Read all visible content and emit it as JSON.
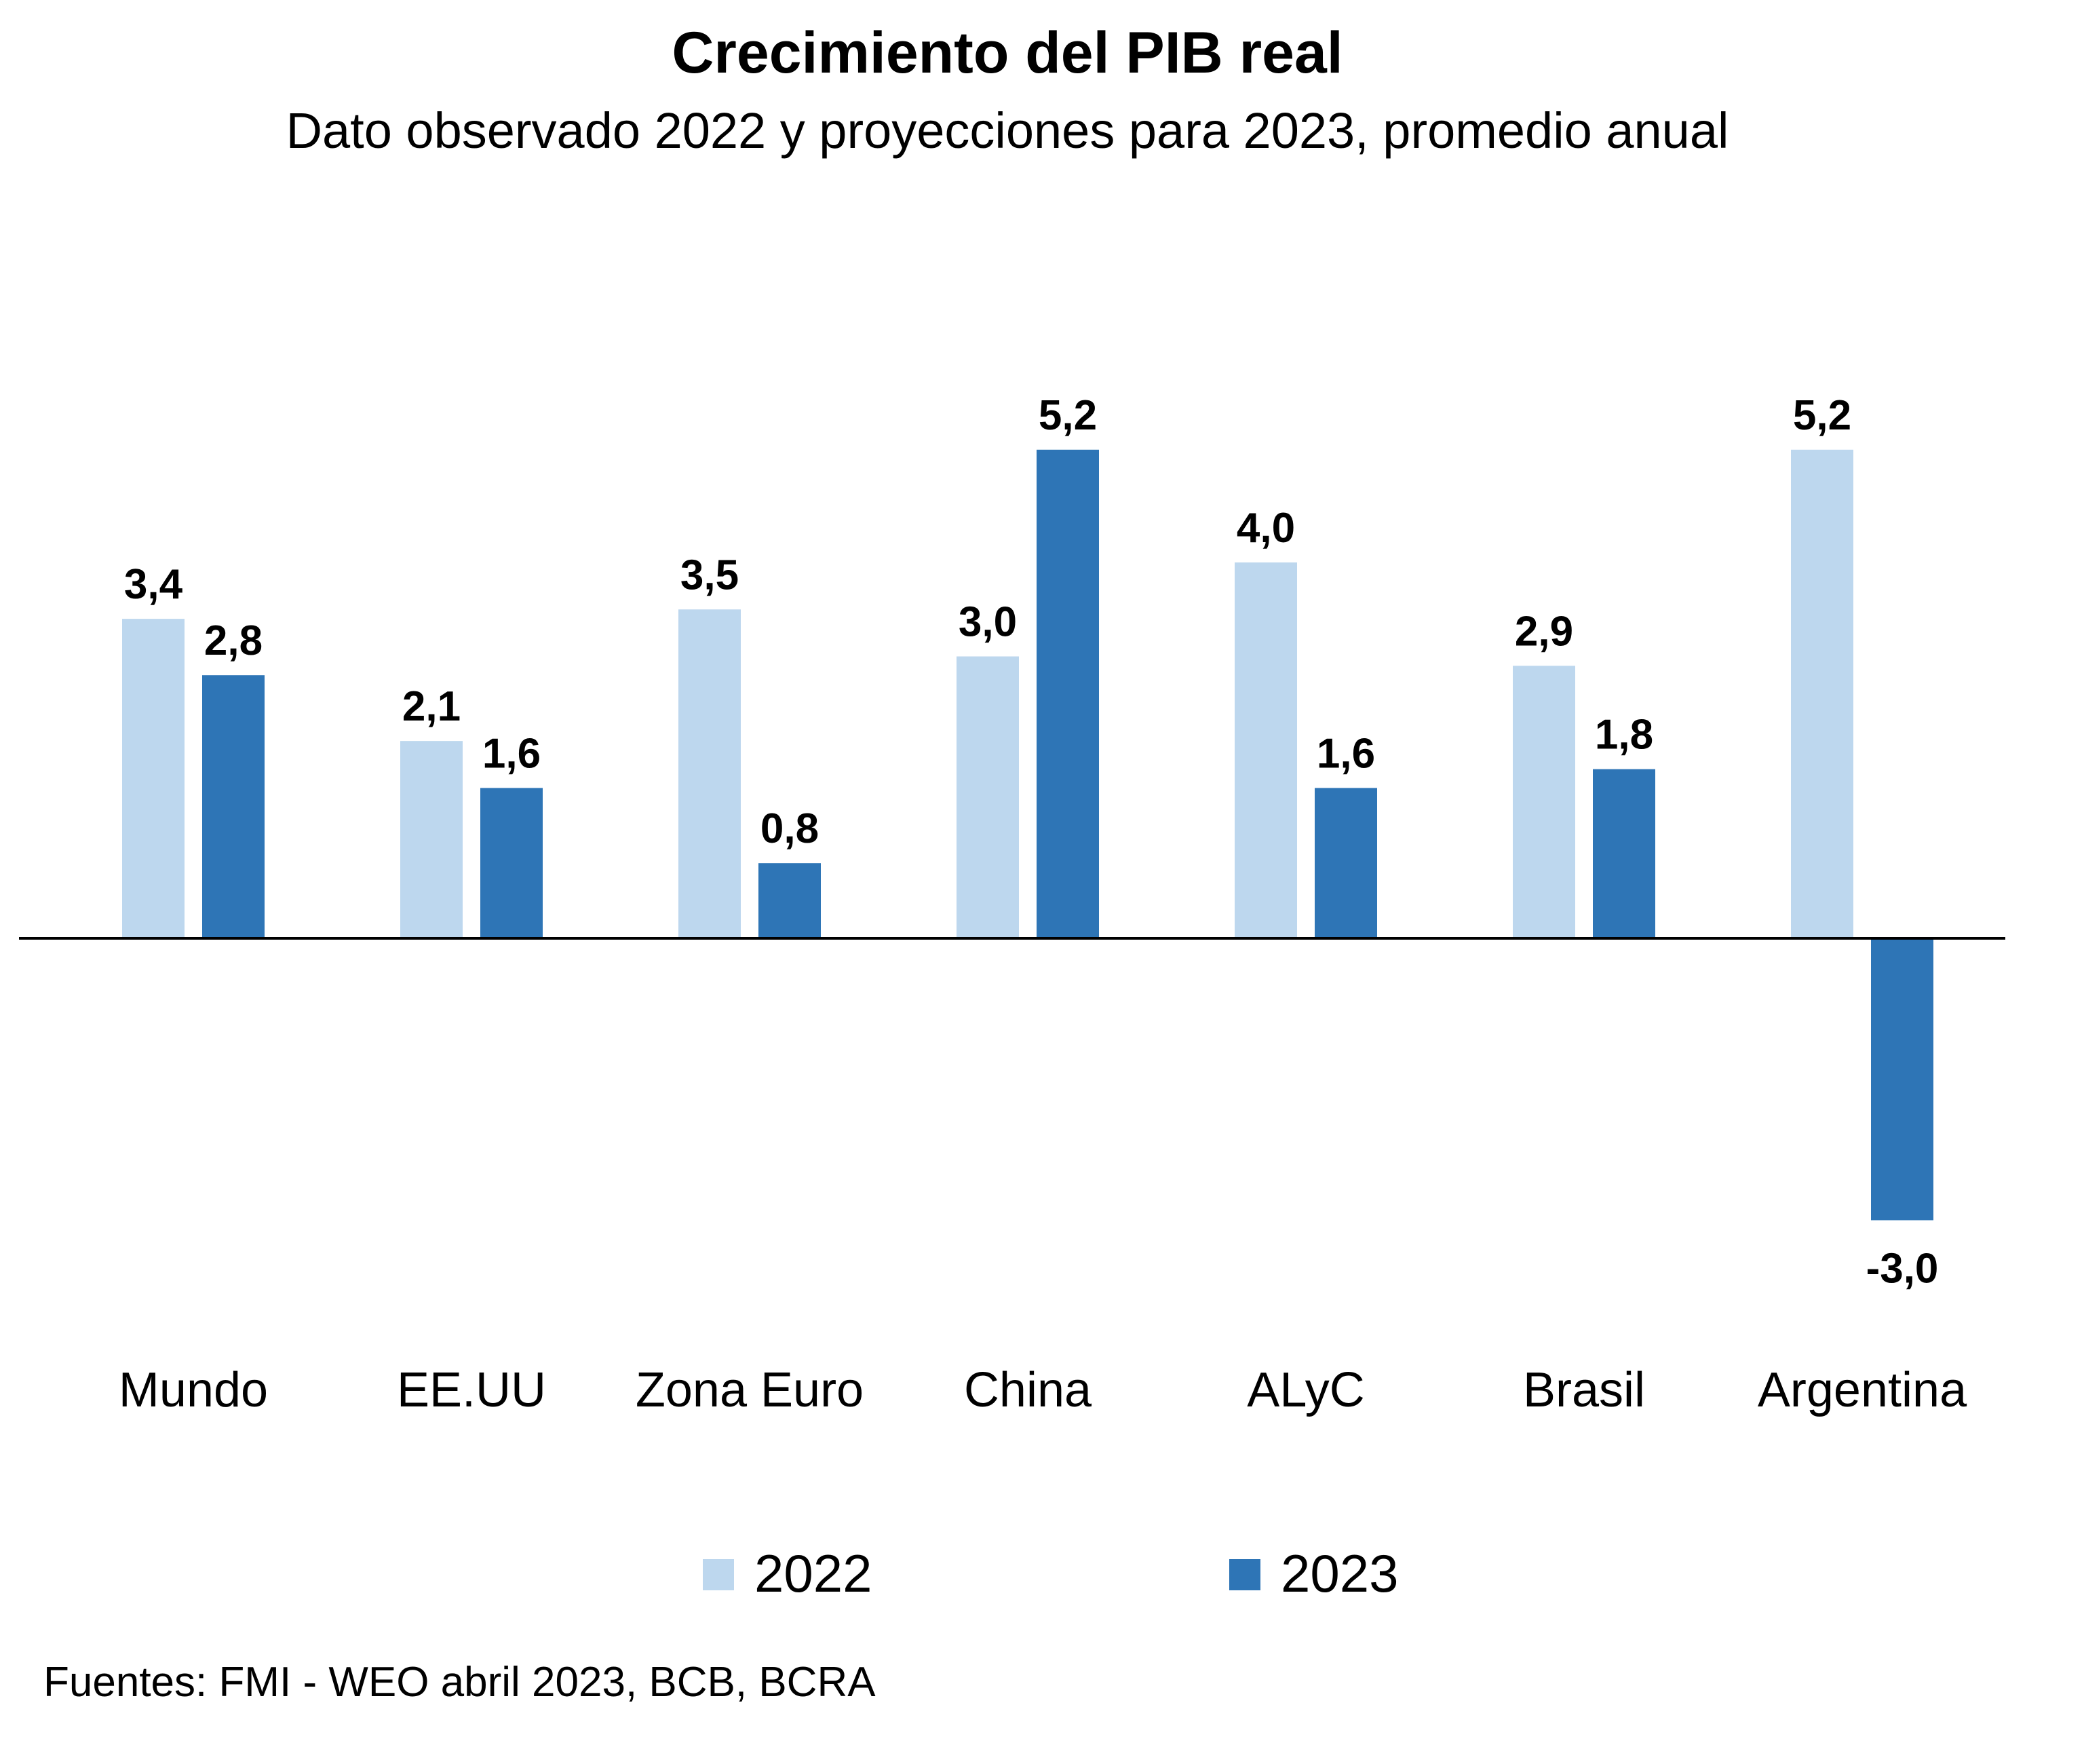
{
  "title": "Crecimiento del PIB real",
  "subtitle": "Dato observado 2022 y proyecciones para 2023, promedio anual",
  "source": "Fuentes: FMI - WEO abril 2023, BCB, BCRA",
  "colors": {
    "series_2022": "#BDD7EE",
    "series_2023": "#2E75B6",
    "axis": "#000000"
  },
  "chart_data": {
    "type": "bar",
    "title": "Crecimiento del PIB real",
    "subtitle": "Dato observado 2022 y proyecciones para 2023, promedio anual",
    "categories": [
      "Mundo",
      "EE.UU",
      "Zona Euro",
      "China",
      "ALyC",
      "Brasil",
      "Argentina"
    ],
    "series": [
      {
        "name": "2022",
        "values": [
          3.4,
          2.1,
          3.5,
          3.0,
          4.0,
          2.9,
          5.2
        ],
        "labels": [
          "3,4",
          "2,1",
          "3,5",
          "3,0",
          "4,0",
          "2,9",
          "5,2"
        ]
      },
      {
        "name": "2023",
        "values": [
          2.8,
          1.6,
          0.8,
          5.2,
          1.6,
          1.8,
          -3.0
        ],
        "labels": [
          "2,8",
          "1,6",
          "0,8",
          "5,2",
          "1,6",
          "1,8",
          "-3,0"
        ]
      }
    ],
    "xlabel": "",
    "ylabel": "",
    "grid": false,
    "legend": "bottom"
  }
}
